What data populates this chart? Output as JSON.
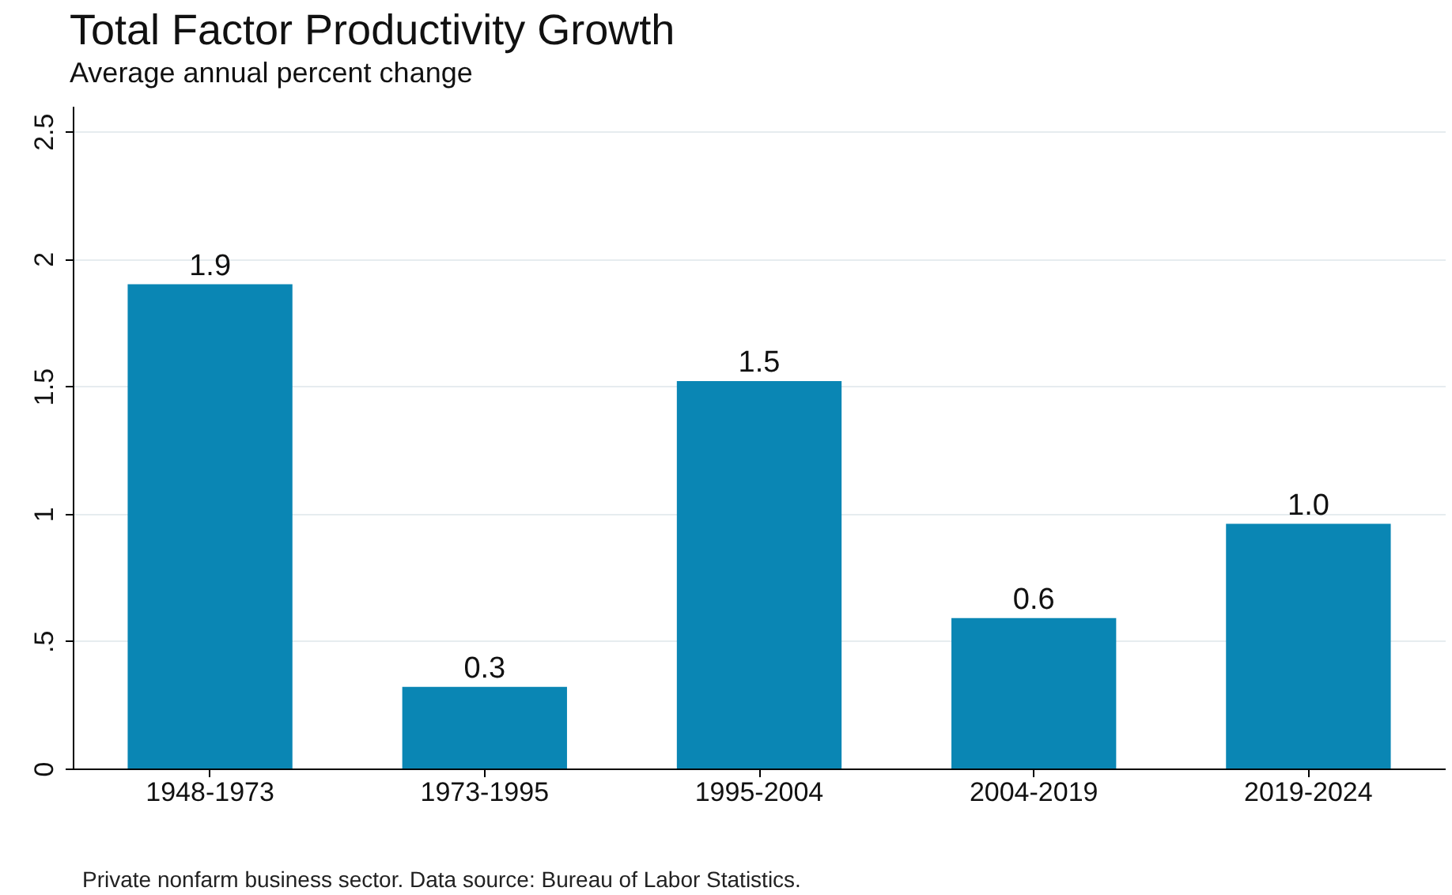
{
  "chart_data": {
    "type": "bar",
    "title": "Total Factor Productivity Growth",
    "subtitle": "Average annual percent change",
    "categories": [
      "1948-1973",
      "1973-1995",
      "1995-2004",
      "2004-2019",
      "2019-2024"
    ],
    "values": [
      1.9,
      0.32,
      1.52,
      0.59,
      0.96
    ],
    "value_labels": [
      "1.9",
      "0.3",
      "1.5",
      "0.6",
      "1.0"
    ],
    "color": "#0a86b4",
    "ylim": [
      0,
      2.6
    ],
    "yticks": [
      0,
      {
        "value": 0.5,
        "label": ".5"
      },
      1,
      1.5,
      2,
      2.5
    ],
    "grid": "y",
    "annotations": [
      "Private nonfarm business sector. Data source: Bureau of Labor Statistics."
    ]
  }
}
